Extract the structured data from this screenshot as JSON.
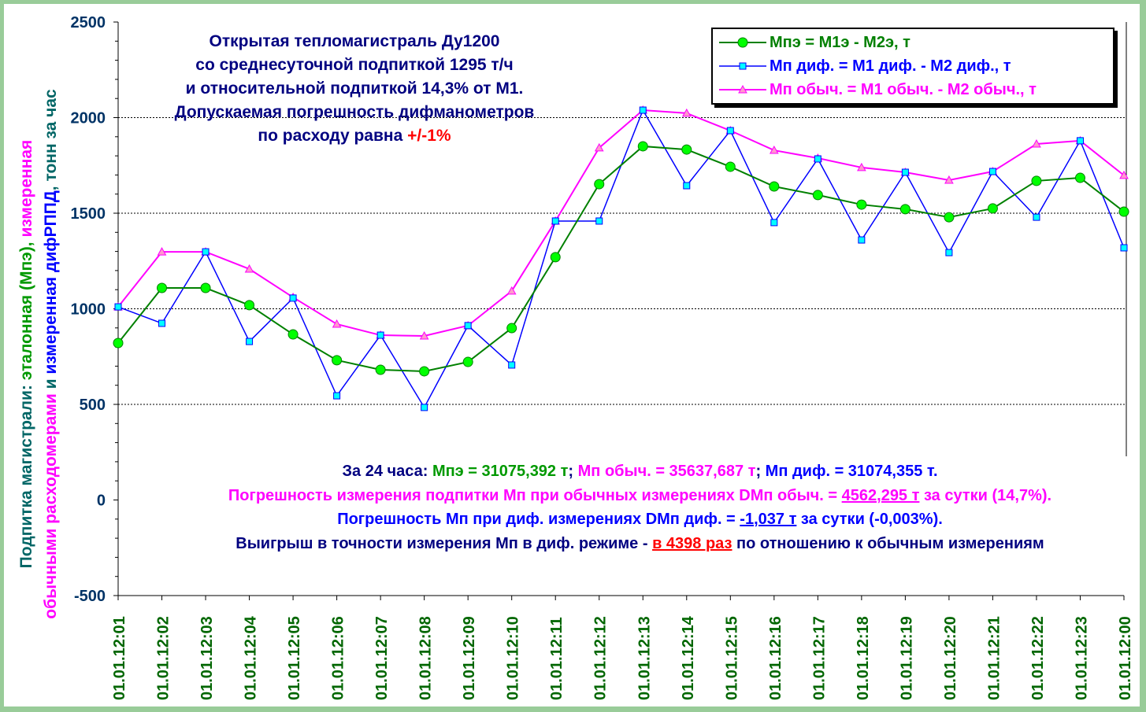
{
  "chart_data": {
    "type": "line",
    "title": [
      "Открытая тепломагистраль Ду1200",
      "со среднесуточной подпиткой 1295 т/ч",
      "и относительной подпиткой 14,3% от М1.",
      "Допускаемая погрешность дифманометров"
    ],
    "title_last_prefix": "по расходу равна ",
    "title_last_red": "+/-1%",
    "ylabel_parts": {
      "p1": "Подпитка магистрали: ",
      "p2": "эталонная (Мпэ), ",
      "p3": "измеренная",
      "p4": "обычными расходомерами",
      "p5": " и ",
      "p6": "измеренная дифРППД",
      "p7": ", тонн за час"
    },
    "ylim": [
      -500,
      2500
    ],
    "yticks": [
      "-500",
      "0",
      "500",
      "1000",
      "1500",
      "2000",
      "2500"
    ],
    "categories": [
      "01.01.12:01",
      "01.01.12:02",
      "01.01.12:03",
      "01.01.12:04",
      "01.01.12:05",
      "01.01.12:06",
      "01.01.12:07",
      "01.01.12:08",
      "01.01.12:09",
      "01.01.12:10",
      "01.01.12:11",
      "01.01.12:12",
      "01.01.12:13",
      "01.01.12:14",
      "01.01.12:15",
      "01.01.12:16",
      "01.01.12:17",
      "01.01.12:18",
      "01.01.12:19",
      "01.01.12:20",
      "01.01.12:21",
      "01.01.12:22",
      "01.01.12:23",
      "01.01.12:00"
    ],
    "series": [
      {
        "name": "Мпэ = М1э - М2э, т",
        "color": "#008000",
        "marker": "circle",
        "fill": "#00ff00",
        "values": [
          821,
          1109,
          1109,
          1019,
          866,
          731,
          681,
          673,
          722,
          899,
          1270,
          1652,
          1850,
          1833,
          1743,
          1640,
          1595,
          1545,
          1521,
          1479,
          1525,
          1669,
          1685,
          1508
        ]
      },
      {
        "name": "Мп диф. = М1 диф. - М2 диф., т",
        "color": "#0000ff",
        "marker": "square",
        "fill": "#00ffff",
        "values": [
          1010,
          924,
          1298,
          829,
          1056,
          545,
          862,
          484,
          912,
          706,
          1459,
          1459,
          2039,
          1644,
          1932,
          1451,
          1784,
          1360,
          1714,
          1294,
          1718,
          1479,
          1879,
          1319
        ]
      },
      {
        "name": "Мп обыч. = М1 обыч. - М2 обыч., т",
        "color": "#ff00ff",
        "marker": "triangle",
        "fill": "#ff99cc",
        "values": [
          1010,
          1298,
          1298,
          1208,
          1060,
          920,
          862,
          858,
          912,
          1093,
          1459,
          1842,
          2039,
          2023,
          1932,
          1829,
          1788,
          1739,
          1714,
          1673,
          1718,
          1862,
          1879,
          1698
        ]
      }
    ],
    "grid": "horizontal dashed",
    "legend": "top-right"
  },
  "annotations": {
    "l1": {
      "a": "За 24 часа: ",
      "b": "Мпэ = 31075,392 т",
      "c": "; ",
      "d": "Мп  обыч. = 35637,687 т",
      "e": "; ",
      "f": "Мп диф. = 31074,355 т."
    },
    "l2": {
      "a": "Погрешность измерения подпитки Мп при обычных измерениях DМп обыч. = ",
      "b": "4562,295 т",
      "c": " за сутки (14,7%)."
    },
    "l3": {
      "a": "Погрешность Мп при диф. измерениях DМп диф. = ",
      "b": "-1,037 т",
      "c": " за сутки (-0,003%)."
    },
    "l4": {
      "a": "Выигрыш в точности измерения Мп в диф. режиме - ",
      "b": "в 4398 раз",
      "c": " по отношению к обычным измерениям"
    }
  }
}
